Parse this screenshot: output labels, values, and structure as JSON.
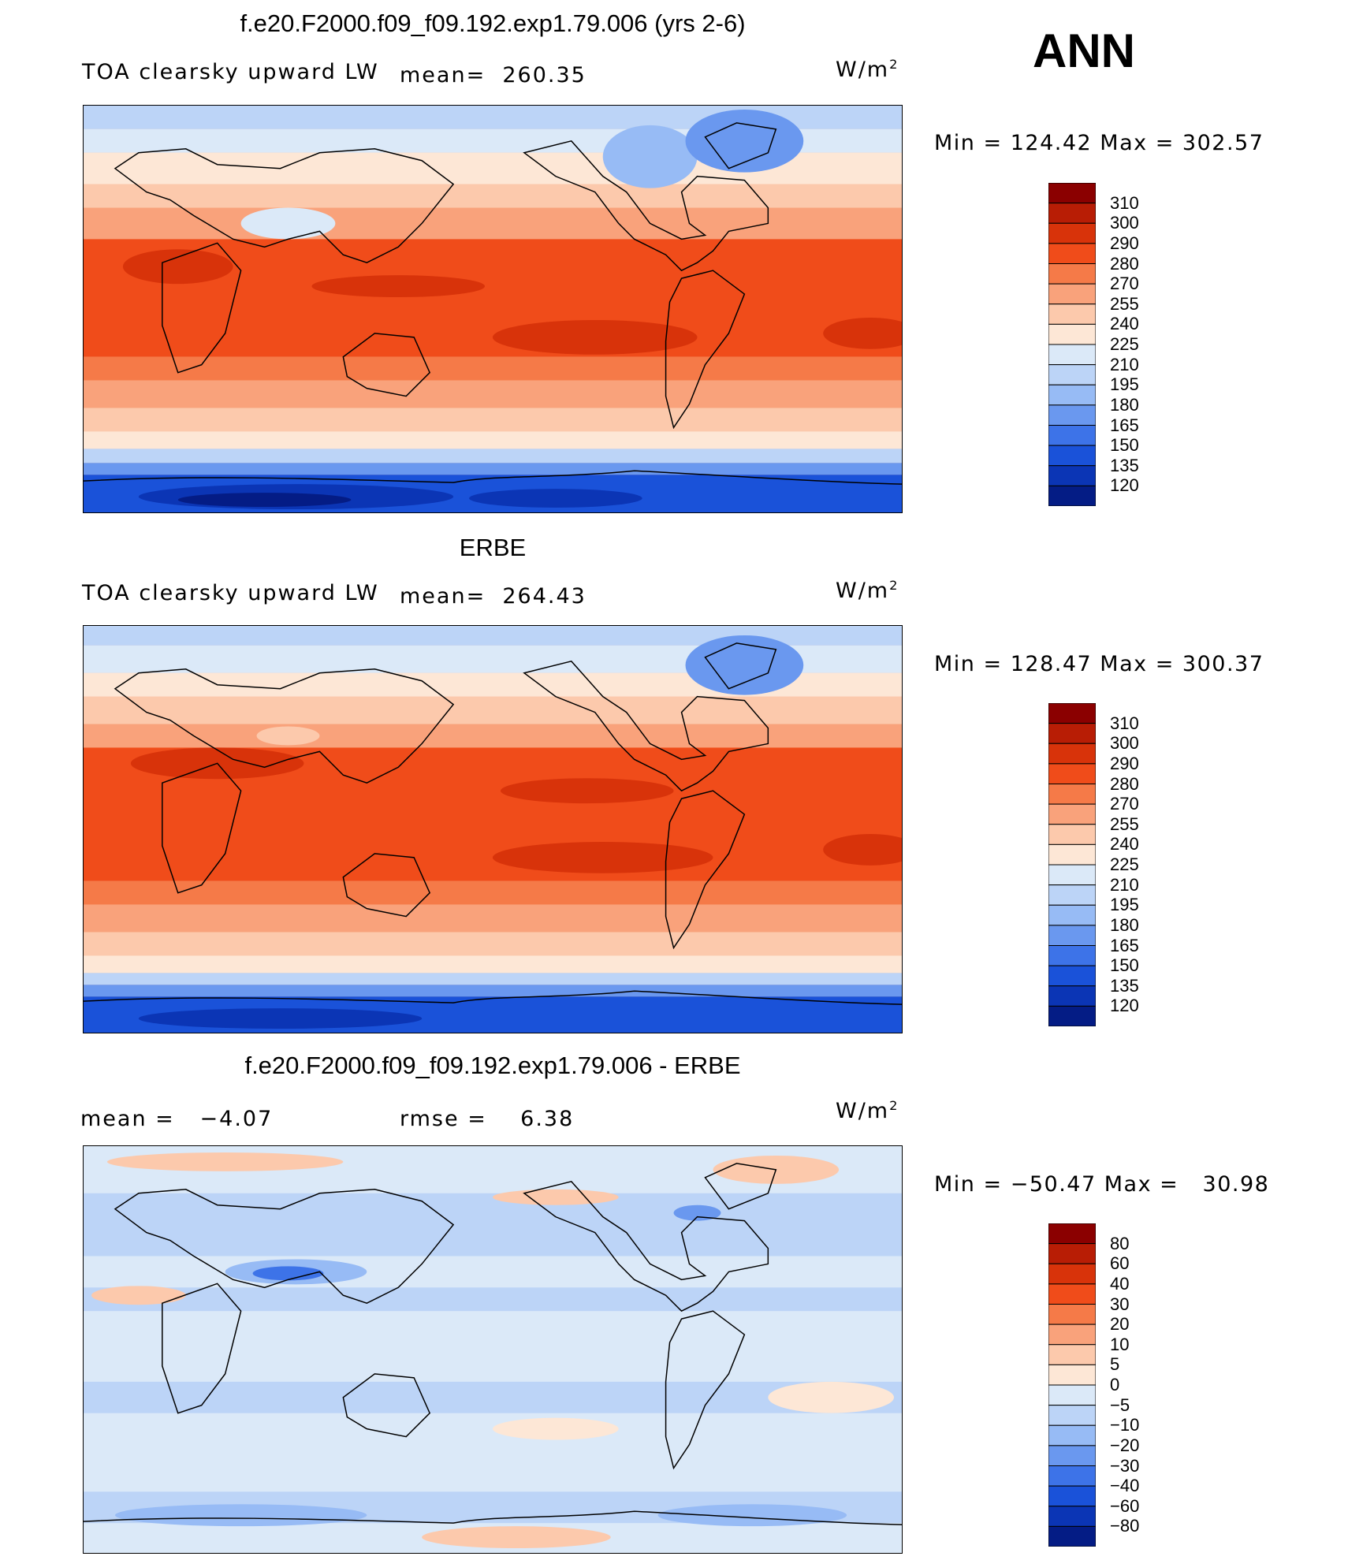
{
  "season": "ANN",
  "panels": [
    {
      "title": "f.e20.F2000.f09_f09.192.exp1.79.006 (yrs 2-6)",
      "left_label": "TOA clearsky upward LW",
      "mean_label": "mean=",
      "mean_value": "260.35",
      "units": "W/m",
      "units_sup": "2",
      "min_label": "Min",
      "min_value": "124.42",
      "max_label": "Max",
      "max_value": "302.57",
      "colorbar": {
        "labels": [
          "310",
          "300",
          "290",
          "280",
          "270",
          "255",
          "240",
          "225",
          "210",
          "195",
          "180",
          "165",
          "150",
          "135",
          "120"
        ],
        "colors": [
          "#8b0000",
          "#b81d05",
          "#d8330a",
          "#f04c1a",
          "#f57a48",
          "#f9a27b",
          "#fcc9ac",
          "#fde7d6",
          "#dbe9f8",
          "#bcd4f7",
          "#97bbf5",
          "#6a98ef",
          "#3d73e8",
          "#1a52d9",
          "#0b35b5",
          "#041c85"
        ]
      }
    },
    {
      "title": "ERBE",
      "left_label": "TOA clearsky upward LW",
      "mean_label": "mean=",
      "mean_value": "264.43",
      "units": "W/m",
      "units_sup": "2",
      "min_label": "Min",
      "min_value": "128.47",
      "max_label": "Max",
      "max_value": "300.37",
      "colorbar": {
        "labels": [
          "310",
          "300",
          "290",
          "280",
          "270",
          "255",
          "240",
          "225",
          "210",
          "195",
          "180",
          "165",
          "150",
          "135",
          "120"
        ],
        "colors": [
          "#8b0000",
          "#b81d05",
          "#d8330a",
          "#f04c1a",
          "#f57a48",
          "#f9a27b",
          "#fcc9ac",
          "#fde7d6",
          "#dbe9f8",
          "#bcd4f7",
          "#97bbf5",
          "#6a98ef",
          "#3d73e8",
          "#1a52d9",
          "#0b35b5",
          "#041c85"
        ]
      }
    },
    {
      "title": "f.e20.F2000.f09_f09.192.exp1.79.006 - ERBE",
      "left_label": "mean =",
      "left_value": "−4.07",
      "rmse_label": "rmse =",
      "rmse_value": "6.38",
      "units": "W/m",
      "units_sup": "2",
      "min_label": "Min",
      "min_value": "−50.47",
      "max_label": "Max",
      "max_value": "30.98",
      "colorbar": {
        "labels": [
          "80",
          "60",
          "40",
          "30",
          "20",
          "10",
          "5",
          "0",
          "−5",
          "−10",
          "−20",
          "−30",
          "−40",
          "−60",
          "−80"
        ],
        "colors": [
          "#8b0000",
          "#b81d05",
          "#d8330a",
          "#f04c1a",
          "#f57a48",
          "#f9a27b",
          "#fcc9ac",
          "#fde7d6",
          "#dbe9f8",
          "#bcd4f7",
          "#97bbf5",
          "#6a98ef",
          "#3d73e8",
          "#1a52d9",
          "#0b35b5",
          "#041c85"
        ]
      }
    }
  ]
}
